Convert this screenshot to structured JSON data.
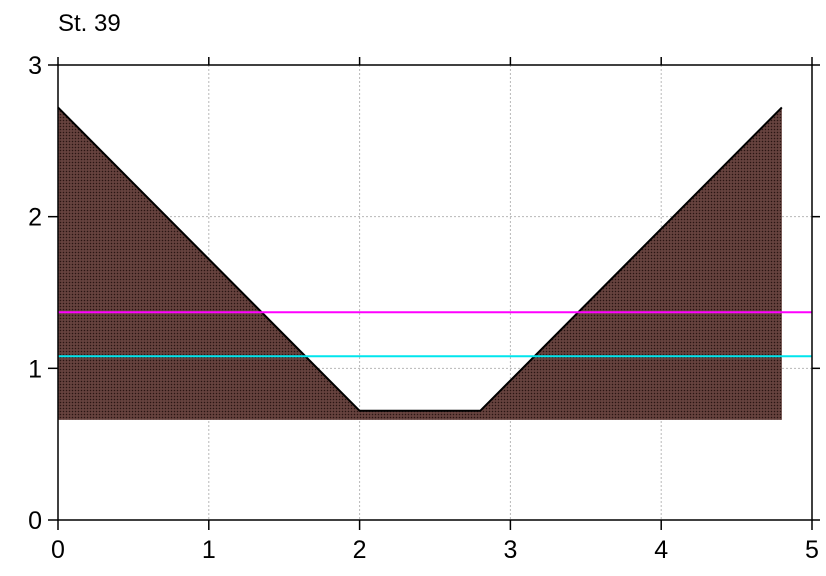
{
  "chart_data": {
    "type": "area",
    "title": "St. 39",
    "xlabel": "",
    "ylabel": "",
    "xlim": [
      0,
      5
    ],
    "ylim": [
      0,
      3
    ],
    "xticks": [
      0,
      1,
      2,
      3,
      4,
      5
    ],
    "xtick_labels": [
      "0",
      "1",
      "2",
      "3",
      "4",
      "5"
    ],
    "yticks": [
      0,
      1,
      2,
      3
    ],
    "ytick_labels": [
      "0",
      "1",
      "2",
      "3"
    ],
    "grid": true,
    "legend": "none",
    "cross_section": {
      "profile_x": [
        0,
        2.0,
        2.8,
        4.8
      ],
      "profile_y": [
        2.72,
        0.72,
        0.72,
        2.72
      ],
      "base_y": 0.66,
      "fill_color": "#5a3a36",
      "line_color": "#000000"
    },
    "series": [
      {
        "type": "hline",
        "y": 1.37,
        "x_range": [
          0,
          5
        ],
        "color": "#ff00ff"
      },
      {
        "type": "hline",
        "y": 1.08,
        "x_range": [
          0,
          5
        ],
        "color": "#00e5ee"
      }
    ]
  }
}
